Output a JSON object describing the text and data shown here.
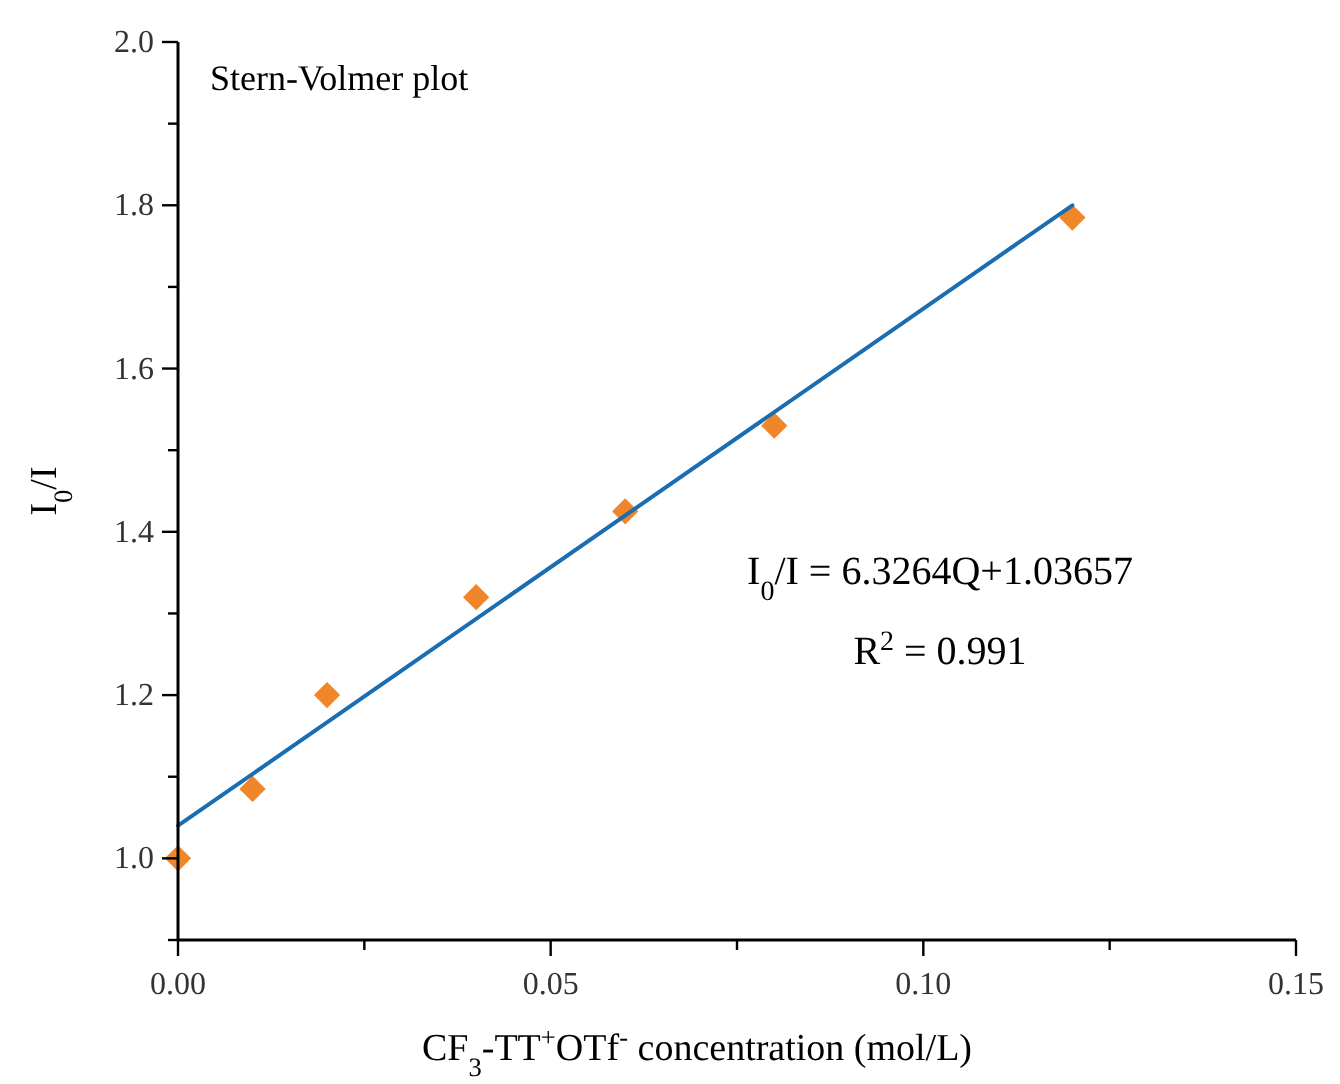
{
  "chart_data": {
    "type": "scatter",
    "title": "Stern-Volmer plot",
    "xlabel": "CF$_{3}$-TT$^{+}$OTf$^{-}$ concentration (mol/L)",
    "ylabel": "I$_{0}$/I",
    "series": [
      {
        "color": "#f0862a",
        "marker": "diamond",
        "x": [
          0,
          0.01,
          0.02,
          0.04,
          0.06,
          0.08,
          0.12
        ],
        "values": [
          1.0,
          1.085,
          1.2,
          1.32,
          1.425,
          1.53,
          1.785
        ]
      },
      {
        "type": "line",
        "color": "#1a6db0",
        "marker": "none",
        "line_style": "solid",
        "x": [
          0,
          0.12
        ],
        "values": [
          1.04,
          1.8
        ]
      }
    ],
    "xlim": [
      0,
      0.15
    ],
    "ylim": [
      0.9,
      2.0
    ],
    "xticks": [
      {
        "value": 0,
        "label": "0.00"
      },
      {
        "value": 0.025,
        "label": null
      },
      {
        "value": 0.05,
        "label": "0.05"
      },
      {
        "value": 0.075,
        "label": null
      },
      {
        "value": 0.1,
        "label": "0.10"
      },
      {
        "value": 0.125,
        "label": null
      },
      {
        "value": 0.15,
        "label": "0.15"
      }
    ],
    "yticks": [
      {
        "value": 0.9,
        "label": null
      },
      {
        "value": 1.0,
        "label": "1.0"
      },
      {
        "value": 1.1,
        "label": null
      },
      {
        "value": 1.2,
        "label": "1.2"
      },
      {
        "value": 1.3,
        "label": null
      },
      {
        "value": 1.4,
        "label": "1.4"
      },
      {
        "value": 1.5,
        "label": null
      },
      {
        "value": 1.6,
        "label": "1.6"
      },
      {
        "value": 1.7,
        "label": null
      },
      {
        "value": 1.8,
        "label": "1.8"
      },
      {
        "value": 1.9,
        "label": null
      },
      {
        "value": 2.0,
        "label": "2.0"
      }
    ],
    "grid": false,
    "annotations": [
      "I$_{0}$/I = 6.3264Q+1.03657",
      "R$^{2}$ = 0.991"
    ]
  }
}
